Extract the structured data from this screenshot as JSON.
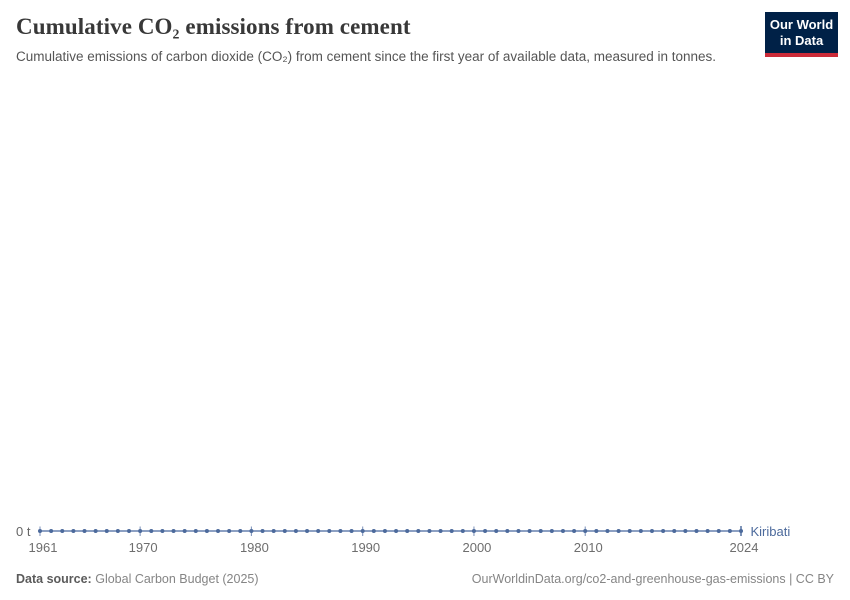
{
  "header": {
    "title": "Cumulative CO₂ emissions from cement",
    "subtitle": "Cumulative emissions of carbon dioxide (CO₂) from cement since the first year of available data, measured in tonnes.",
    "logo": {
      "line1": "Our World",
      "line2": "in Data",
      "bg_color": "#002147",
      "accent_color": "#CC2B39"
    }
  },
  "chart_data": {
    "type": "line",
    "title": "Cumulative CO₂ emissions from cement",
    "xlabel": "",
    "ylabel": "",
    "unit": "t",
    "grid": false,
    "legend_position": "end-of-line",
    "x": [
      1961,
      1962,
      1963,
      1964,
      1965,
      1966,
      1967,
      1968,
      1969,
      1970,
      1971,
      1972,
      1973,
      1974,
      1975,
      1976,
      1977,
      1978,
      1979,
      1980,
      1981,
      1982,
      1983,
      1984,
      1985,
      1986,
      1987,
      1988,
      1989,
      1990,
      1991,
      1992,
      1993,
      1994,
      1995,
      1996,
      1997,
      1998,
      1999,
      2000,
      2001,
      2002,
      2003,
      2004,
      2005,
      2006,
      2007,
      2008,
      2009,
      2010,
      2011,
      2012,
      2013,
      2014,
      2015,
      2016,
      2017,
      2018,
      2019,
      2020,
      2021,
      2022,
      2023,
      2024
    ],
    "series": [
      {
        "name": "Kiribati",
        "color": "#4C6A9C",
        "values": [
          0,
          0,
          0,
          0,
          0,
          0,
          0,
          0,
          0,
          0,
          0,
          0,
          0,
          0,
          0,
          0,
          0,
          0,
          0,
          0,
          0,
          0,
          0,
          0,
          0,
          0,
          0,
          0,
          0,
          0,
          0,
          0,
          0,
          0,
          0,
          0,
          0,
          0,
          0,
          0,
          0,
          0,
          0,
          0,
          0,
          0,
          0,
          0,
          0,
          0,
          0,
          0,
          0,
          0,
          0,
          0,
          0,
          0,
          0,
          0,
          0,
          0,
          0,
          0
        ]
      }
    ],
    "x_ticks": [
      1961,
      1970,
      1980,
      1990,
      2000,
      2010,
      2024
    ],
    "y_axis_zero_label": "0 t",
    "ylim": [
      0,
      0
    ],
    "marker": "circle",
    "tick_color": "#8498BE",
    "axis_label_color": "#6e6e6e"
  },
  "axis": {
    "zero_label": "0 t",
    "entity_label": "Kiribati"
  },
  "footer": {
    "source_label": "Data source:",
    "source_value": "Global Carbon Budget (2025)",
    "credit": "OurWorldinData.org/co2-and-greenhouse-gas-emissions | CC BY"
  }
}
